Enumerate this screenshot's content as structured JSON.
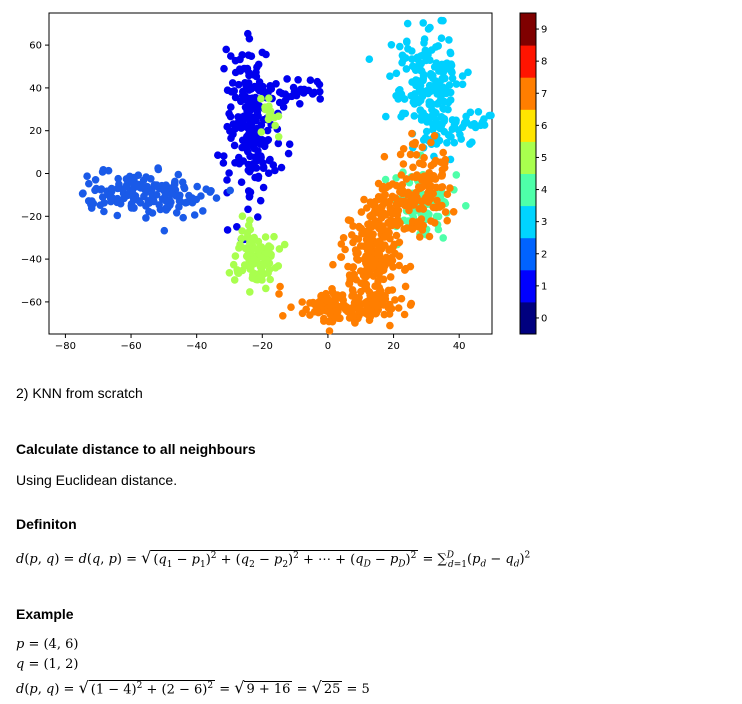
{
  "chart_data": {
    "type": "scatter",
    "xlim": [
      -85,
      50
    ],
    "ylim": [
      -75,
      75
    ],
    "x_ticks": [
      "−80",
      "−60",
      "−40",
      "−20",
      "0",
      "20",
      "40"
    ],
    "x_tick_values": [
      -80,
      -60,
      -40,
      -20,
      0,
      20,
      40
    ],
    "y_ticks": [
      "60",
      "40",
      "20",
      "0",
      "−20",
      "−40",
      "−60"
    ],
    "y_tick_values": [
      60,
      40,
      20,
      0,
      -20,
      -40,
      -60
    ],
    "grid": false,
    "colorbar": {
      "ticks": [
        "0",
        "1",
        "2",
        "3",
        "4",
        "5",
        "6",
        "7",
        "8",
        "9"
      ],
      "colors": [
        "#00007f",
        "#0000ff",
        "#0063ff",
        "#00d4ff",
        "#4effa9",
        "#a9ff4e",
        "#ffe500",
        "#ff7e00",
        "#ff1400",
        "#7f0000"
      ]
    },
    "clusters": [
      {
        "label": 1,
        "color": "#0000ee",
        "cx": -23,
        "cy": 25,
        "sx": 4,
        "sy": 18,
        "n": 220
      },
      {
        "label": 1,
        "color": "#0000ee",
        "cx": -8,
        "cy": 38,
        "sx": 4,
        "sy": 3,
        "n": 25
      },
      {
        "label": 2,
        "color": "#1a5ae8",
        "cx": -57,
        "cy": -10,
        "sx": 10,
        "sy": 5,
        "n": 150
      },
      {
        "label": 3,
        "color": "#00d0ff",
        "cx": 30,
        "cy": 45,
        "sx": 5,
        "sy": 12,
        "n": 180
      },
      {
        "label": 3,
        "color": "#00d0ff",
        "cx": 38,
        "cy": 22,
        "sx": 6,
        "sy": 5,
        "n": 60
      },
      {
        "label": 4,
        "color": "#4effa9",
        "cx": 28,
        "cy": -15,
        "sx": 6,
        "sy": 8,
        "n": 80
      },
      {
        "label": 5,
        "color": "#a9ff4e",
        "cx": -22,
        "cy": -40,
        "sx": 3,
        "sy": 8,
        "n": 90
      },
      {
        "label": 5,
        "color": "#a9ff4e",
        "cx": -18,
        "cy": 27,
        "sx": 2,
        "sy": 5,
        "n": 15
      },
      {
        "label": 7,
        "color": "#ff7e00",
        "cx": 5,
        "cy": -62,
        "sx": 7,
        "sy": 4,
        "n": 150
      },
      {
        "label": 7,
        "color": "#ff7e00",
        "cx": 15,
        "cy": -42,
        "sx": 5,
        "sy": 10,
        "n": 160
      },
      {
        "label": 7,
        "color": "#ff7e00",
        "cx": 28,
        "cy": -5,
        "sx": 5,
        "sy": 10,
        "n": 120
      },
      {
        "label": 7,
        "color": "#ff7e00",
        "cx": 18,
        "cy": -18,
        "sx": 5,
        "sy": 6,
        "n": 80
      }
    ]
  },
  "sections": {
    "knn_title": "2) KNN from scratch",
    "calc_heading": "Calculate distance to all neighbours",
    "calc_text": "Using Euclidean distance.",
    "def_heading": "Definiton",
    "example_heading": "Example"
  },
  "formulas": {
    "def_lhs": "d(p, q) = d(q, p) = ",
    "def_radicand": "(q₁ − p₁)² + (q₂ − p₂)² + ⋯ + (q_D − p_D)²",
    "def_sum": " = ∑_{d=1}^{D} (p_d − q_d)²",
    "ex_p": "p = (4, 6)",
    "ex_q": "q = (1, 2)",
    "ex_lhs": "d(p, q) = ",
    "ex_radicand": "(1 − 4)² + (2 − 6)²",
    "ex_mid": " = ",
    "ex_rad2": "9 + 16",
    "ex_mid2": " = ",
    "ex_rad3": "25",
    "ex_result": " = 5"
  }
}
